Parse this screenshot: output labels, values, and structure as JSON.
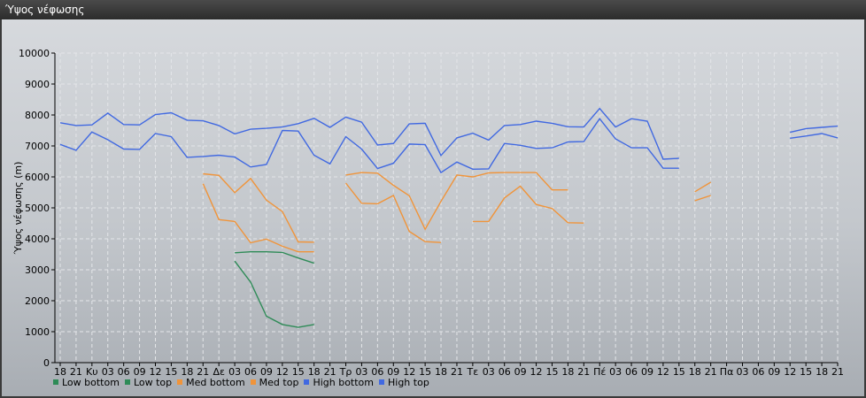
{
  "window": {
    "title": "Ύψος νέφωσης"
  },
  "chart_data": {
    "type": "line",
    "title": "",
    "ylabel": "Ύψος νέφωσης (m)",
    "xlabel": "",
    "ylim": [
      0,
      10000
    ],
    "yticks": [
      0,
      1000,
      2000,
      3000,
      4000,
      5000,
      6000,
      7000,
      8000,
      9000,
      10000
    ],
    "grid": true,
    "legend_position": "bottom-left",
    "x_labels": [
      "18",
      "21",
      "Κυ",
      "03",
      "06",
      "09",
      "12",
      "15",
      "18",
      "21",
      "Δε",
      "03",
      "06",
      "09",
      "12",
      "15",
      "18",
      "21",
      "Τρ",
      "03",
      "06",
      "09",
      "12",
      "15",
      "18",
      "21",
      "Τε",
      "03",
      "06",
      "09",
      "12",
      "15",
      "18",
      "21",
      "Πέ",
      "03",
      "06",
      "09",
      "12",
      "15",
      "18",
      "21",
      "Πα",
      "03",
      "06",
      "09",
      "12",
      "15",
      "18",
      "21"
    ],
    "series": [
      {
        "name": "Low bottom",
        "color": "#2e8b57",
        "values": [
          null,
          null,
          null,
          null,
          null,
          null,
          null,
          null,
          null,
          null,
          null,
          3550,
          3580,
          3580,
          3560,
          3380,
          3210,
          null,
          null,
          null,
          null,
          null,
          null,
          null,
          null,
          null,
          null,
          null,
          null,
          null,
          null,
          null,
          null,
          null,
          null,
          null,
          null,
          null,
          null,
          null,
          null,
          null,
          null,
          null,
          null,
          null,
          null,
          null,
          null,
          null
        ]
      },
      {
        "name": "Low top",
        "color": "#2e8b57",
        "values": [
          null,
          null,
          null,
          null,
          null,
          null,
          null,
          null,
          null,
          null,
          null,
          3280,
          2600,
          1500,
          1230,
          1140,
          1230,
          null,
          null,
          null,
          null,
          null,
          null,
          null,
          null,
          null,
          null,
          null,
          null,
          null,
          null,
          null,
          null,
          null,
          null,
          null,
          null,
          null,
          null,
          null,
          null,
          null,
          null,
          null,
          null,
          null,
          null,
          null,
          null,
          null
        ]
      },
      {
        "name": "Med bottom",
        "color": "#f0943a",
        "values": [
          null,
          null,
          null,
          null,
          null,
          null,
          null,
          null,
          null,
          5780,
          4620,
          4560,
          3870,
          3990,
          3760,
          3580,
          3580,
          null,
          5800,
          5150,
          5130,
          5400,
          4240,
          3910,
          3880,
          null,
          4560,
          4560,
          5320,
          5700,
          5110,
          4980,
          4520,
          4510,
          null,
          null,
          null,
          null,
          null,
          null,
          5230,
          5400,
          null,
          null,
          null,
          null,
          null,
          null,
          null,
          null
        ]
      },
      {
        "name": "Med top",
        "color": "#f0943a",
        "values": [
          null,
          null,
          null,
          null,
          null,
          null,
          null,
          null,
          null,
          6100,
          6050,
          5490,
          5950,
          5250,
          4880,
          3900,
          3890,
          null,
          6060,
          6140,
          6120,
          5730,
          5390,
          4310,
          5210,
          6060,
          6000,
          6130,
          6140,
          6140,
          6140,
          5580,
          5580,
          null,
          null,
          null,
          null,
          null,
          null,
          null,
          5520,
          5830,
          null,
          null,
          null,
          null,
          null,
          null,
          null,
          null
        ]
      },
      {
        "name": "High bottom",
        "color": "#4169e1",
        "values": [
          7050,
          6860,
          7450,
          7200,
          6900,
          6890,
          7400,
          7300,
          6630,
          6660,
          6700,
          6640,
          6320,
          6400,
          7500,
          7480,
          6700,
          6420,
          7300,
          6900,
          6270,
          6440,
          7060,
          7040,
          6140,
          6480,
          6250,
          6260,
          7080,
          7020,
          6920,
          6940,
          7130,
          7140,
          7880,
          7230,
          6940,
          6940,
          6280,
          6280,
          null,
          null,
          null,
          null,
          null,
          null,
          7250,
          7320,
          7400,
          7260
        ]
      },
      {
        "name": "High top",
        "color": "#4169e1",
        "values": [
          7750,
          7660,
          7680,
          8060,
          7690,
          7680,
          8010,
          8070,
          7830,
          7810,
          7660,
          7390,
          7540,
          7570,
          7610,
          7720,
          7890,
          7600,
          7930,
          7770,
          7030,
          7080,
          7710,
          7730,
          6690,
          7260,
          7410,
          7190,
          7660,
          7690,
          7800,
          7730,
          7620,
          7610,
          8210,
          7610,
          7880,
          7800,
          6570,
          6600,
          null,
          null,
          null,
          null,
          null,
          null,
          7440,
          7560,
          7600,
          7640
        ]
      }
    ]
  }
}
